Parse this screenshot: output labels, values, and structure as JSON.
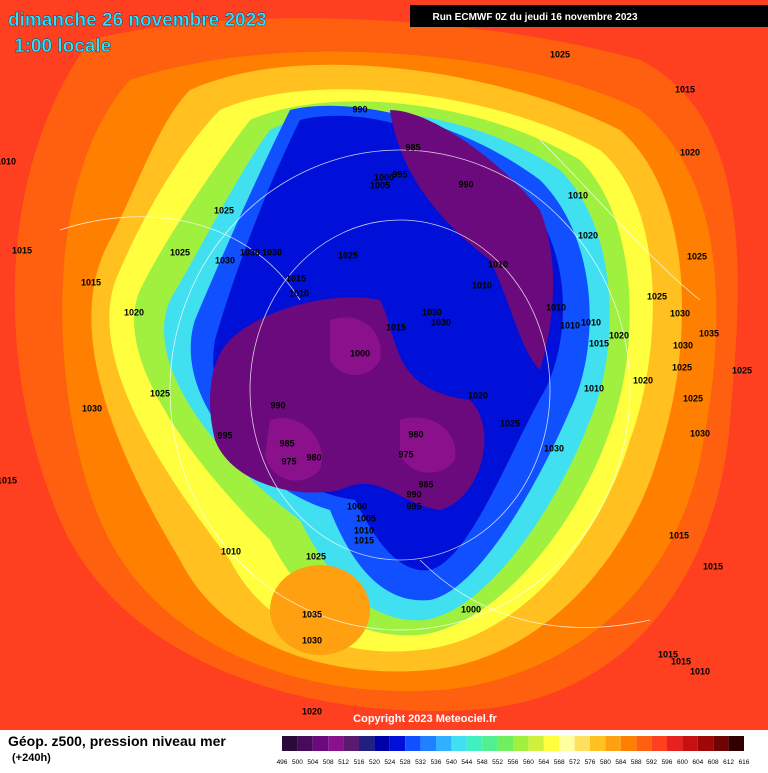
{
  "header": {
    "title": "dimanche 26 novembre 2023",
    "subtitle": "1:00 locale",
    "run": "Run ECMWF 0Z du jeudi 16 novembre 2023"
  },
  "footer": {
    "title": "Géop. z500, pression niveau mer",
    "lead": "(+240h)",
    "copyright": "Copyright 2023 Meteociel.fr"
  },
  "legend": {
    "ticks": [
      496,
      500,
      504,
      508,
      512,
      516,
      520,
      524,
      528,
      532,
      536,
      540,
      544,
      548,
      552,
      556,
      560,
      564,
      568,
      572,
      576,
      580,
      584,
      588,
      592,
      596,
      600,
      604,
      608,
      612,
      616
    ],
    "colors": [
      "#2a0a3a",
      "#4a0a5c",
      "#6a0a7c",
      "#8a108c",
      "#5a1a70",
      "#202080",
      "#0000a8",
      "#0010d8",
      "#1050ff",
      "#2080ff",
      "#30b0ff",
      "#40e0f0",
      "#40f0c0",
      "#50f090",
      "#70f060",
      "#a0f040",
      "#d0f040",
      "#ffff40",
      "#ffffa0",
      "#ffe060",
      "#ffc020",
      "#ffa010",
      "#ff8000",
      "#ff6010",
      "#ff4020",
      "#e82020",
      "#c81010",
      "#a00808",
      "#700404",
      "#300000"
    ]
  },
  "pressure_labels": [
    1025,
    1015,
    1010,
    1020,
    1010,
    1020,
    1025,
    1025,
    1015,
    1025,
    1030,
    1030,
    1030,
    1025,
    1010,
    1010,
    1015,
    1015,
    1010,
    1025,
    1020,
    1030,
    1030,
    1010,
    1010,
    1010,
    1015,
    1030,
    1035,
    1020,
    1015,
    1030,
    1000,
    1025,
    1025,
    1020,
    1010,
    1025,
    1020,
    1025,
    990,
    1030,
    1025,
    980,
    995,
    1030,
    985,
    1030,
    975,
    980,
    975,
    1015,
    985,
    990,
    995,
    1000,
    1005,
    1010,
    1015,
    1015,
    1010,
    1025,
    1015,
    1035,
    1000,
    1030,
    1015,
    1015,
    1010,
    1020,
    990,
    985,
    990,
    1000,
    1005,
    995
  ]
}
